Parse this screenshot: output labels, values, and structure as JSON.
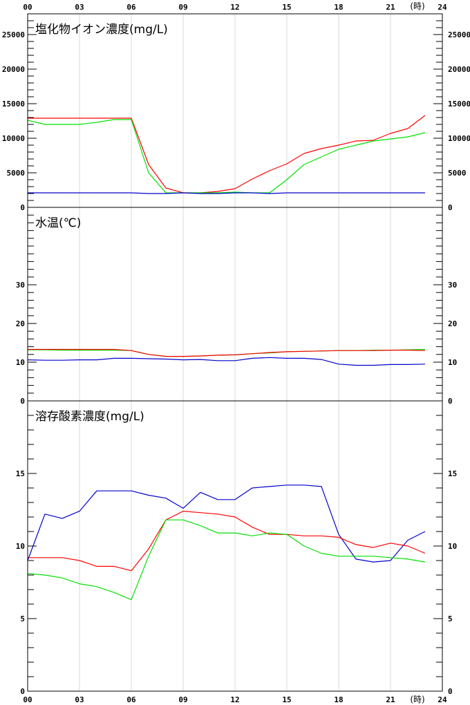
{
  "chart_data": {
    "type": "line",
    "x_ticks": [
      "00",
      "03",
      "06",
      "09",
      "12",
      "15",
      "18",
      "21",
      "24"
    ],
    "x_unit": "(時)",
    "x_hours": [
      0,
      1,
      2,
      3,
      4,
      5,
      6,
      7,
      8,
      9,
      10,
      11,
      12,
      13,
      14,
      15,
      16,
      17,
      18,
      19,
      20,
      21,
      22,
      23
    ],
    "panels": [
      {
        "title": "塩化物イオン濃度(mg/L)",
        "ylim": [
          0,
          28000
        ],
        "y_ticks": [
          "0",
          "5000",
          "10000",
          "15000",
          "20000",
          "25000"
        ],
        "y_tick_values": [
          0,
          5000,
          10000,
          15000,
          20000,
          25000
        ],
        "minor_step": 1000,
        "series": [
          {
            "color": "#ff0000",
            "values": [
              12900,
              12900,
              12900,
              12900,
              12900,
              12900,
              12900,
              6200,
              2800,
              2100,
              2100,
              2300,
              2700,
              4100,
              5300,
              6300,
              7800,
              8500,
              9000,
              9600,
              9700,
              10700,
              11400,
              13300
            ]
          },
          {
            "color": "#00e000",
            "values": [
              12600,
              12000,
              12000,
              12000,
              12300,
              12700,
              12700,
              5000,
              2100,
              2100,
              2100,
              2100,
              2200,
              2100,
              2100,
              4000,
              6200,
              7300,
              8400,
              9000,
              9600,
              9900,
              10200,
              10800
            ]
          },
          {
            "color": "#0000cc",
            "values": [
              2100,
              2100,
              2100,
              2100,
              2100,
              2100,
              2100,
              2000,
              2000,
              2100,
              2000,
              2000,
              2100,
              2100,
              2000,
              2100,
              2100,
              2100,
              2100,
              2100,
              2100,
              2100,
              2100,
              2100
            ]
          }
        ]
      },
      {
        "title": "水温(℃)",
        "ylim": [
          0,
          50
        ],
        "y_ticks": [
          "0",
          "10",
          "20",
          "30"
        ],
        "y_tick_values": [
          0,
          10,
          20,
          30
        ],
        "minor_step": 2,
        "series": [
          {
            "color": "#00e000",
            "values": [
              13.2,
              13.2,
              13.1,
              13.1,
              13.1,
              13.1,
              13.0,
              12.0,
              11.5,
              11.5,
              11.6,
              11.8,
              11.9,
              12.2,
              12.4,
              12.7,
              12.8,
              12.9,
              13.0,
              13.0,
              13.1,
              13.1,
              13.2,
              13.3
            ]
          },
          {
            "color": "#ff0000",
            "values": [
              13.3,
              13.3,
              13.3,
              13.3,
              13.3,
              13.3,
              13.0,
              12.0,
              11.5,
              11.5,
              11.6,
              11.8,
              11.9,
              12.2,
              12.5,
              12.7,
              12.8,
              12.9,
              13.0,
              13.0,
              13.0,
              13.1,
              13.1,
              13.0
            ]
          },
          {
            "color": "#0000cc",
            "values": [
              10.6,
              10.5,
              10.5,
              10.6,
              10.6,
              11.0,
              11.0,
              10.9,
              10.8,
              10.6,
              10.7,
              10.4,
              10.4,
              11.0,
              11.2,
              11.0,
              11.0,
              10.7,
              9.5,
              9.2,
              9.2,
              9.4,
              9.4,
              9.5
            ]
          }
        ]
      },
      {
        "title": "溶存酸素濃度(mg/L)",
        "ylim": [
          0,
          20
        ],
        "y_ticks": [
          "0",
          "5",
          "10",
          "15"
        ],
        "y_tick_values": [
          0,
          5,
          10,
          15
        ],
        "minor_step": 1,
        "series": [
          {
            "color": "#0000cc",
            "values": [
              9.0,
              12.2,
              11.9,
              12.4,
              13.8,
              13.8,
              13.8,
              13.5,
              13.3,
              12.6,
              13.7,
              13.2,
              13.2,
              14.0,
              14.1,
              14.2,
              14.2,
              14.1,
              10.8,
              9.1,
              8.9,
              9.0,
              10.4,
              11.0
            ]
          },
          {
            "color": "#ff0000",
            "values": [
              9.2,
              9.2,
              9.2,
              9.0,
              8.6,
              8.6,
              8.3,
              9.8,
              11.8,
              12.4,
              12.3,
              12.2,
              12.0,
              11.3,
              10.8,
              10.8,
              10.7,
              10.7,
              10.6,
              10.1,
              9.9,
              10.2,
              10.0,
              9.5
            ]
          },
          {
            "color": "#00e000",
            "values": [
              8.1,
              8.0,
              7.8,
              7.4,
              7.2,
              6.8,
              6.3,
              9.3,
              11.8,
              11.8,
              11.4,
              10.9,
              10.9,
              10.7,
              10.9,
              10.8,
              10.0,
              9.5,
              9.3,
              9.3,
              9.3,
              9.2,
              9.1,
              8.9
            ]
          }
        ]
      }
    ]
  }
}
